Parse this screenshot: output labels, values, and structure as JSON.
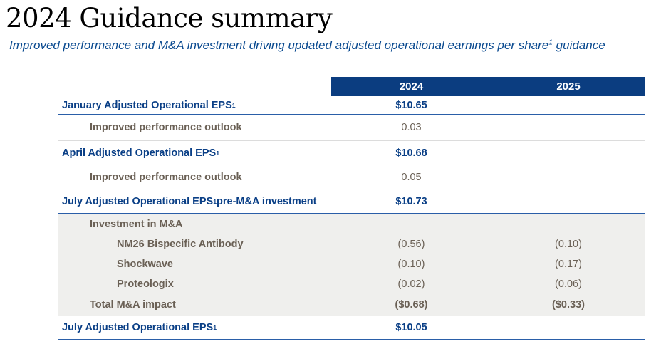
{
  "header": {
    "title": "2024 Guidance summary",
    "subtitle": "Improved performance and M&A investment driving updated adjusted operational earnings per share",
    "subtitle_sup": "1",
    "subtitle_tail": " guidance"
  },
  "table": {
    "columns": [
      "2024",
      "2025"
    ],
    "rows": [
      {
        "label": "January Adjusted Operational EPS",
        "sup": "1",
        "v2024": "$10.65",
        "v2025": ""
      },
      {
        "label": "Improved performance outlook",
        "v2024": "0.03",
        "v2025": ""
      },
      {
        "label": "April Adjusted Operational EPS",
        "sup": "1",
        "v2024": "$10.68",
        "v2025": ""
      },
      {
        "label": "Improved performance outlook",
        "v2024": "0.05",
        "v2025": ""
      },
      {
        "label": "July Adjusted Operational EPS",
        "sup": "1",
        "label_tail": "pre-M&A investment",
        "v2024": "$10.73",
        "v2025": ""
      },
      {
        "label": "Investment in M&A",
        "v2024": "",
        "v2025": ""
      },
      {
        "label": "NM26 Bispecific Antibody",
        "v2024": "(0.56)",
        "v2025": "(0.10)"
      },
      {
        "label": "Shockwave",
        "v2024": "(0.10)",
        "v2025": "(0.17)"
      },
      {
        "label": "Proteologix",
        "v2024": "(0.02)",
        "v2025": "(0.06)"
      },
      {
        "label": "Total M&A impact",
        "v2024": "($0.68)",
        "v2025": "($0.33)"
      },
      {
        "label": "July Adjusted Operational EPS",
        "sup": "1",
        "v2024": "$10.05",
        "v2025": ""
      }
    ]
  },
  "colors": {
    "header_bg": "#0b3d80",
    "label_blue": "#0a3f86",
    "label_gray": "#6a6055",
    "shade_bg": "#efefed"
  }
}
